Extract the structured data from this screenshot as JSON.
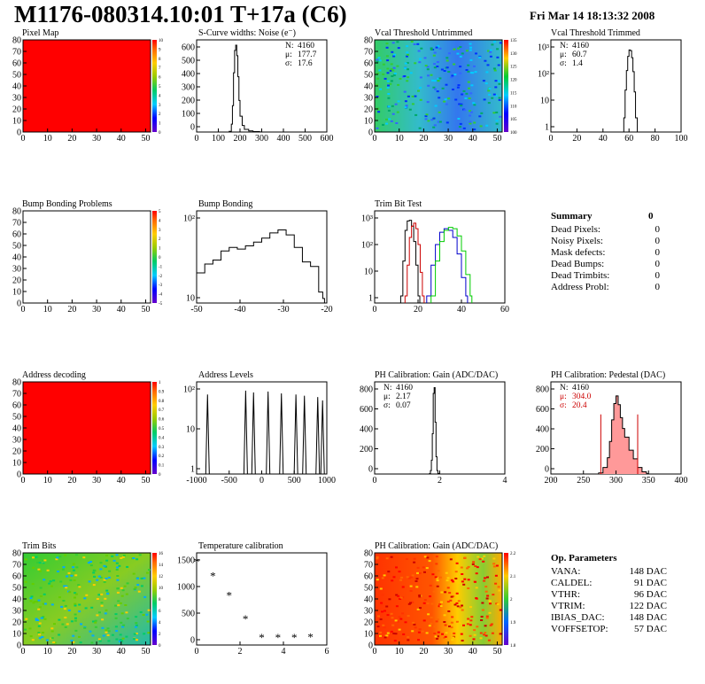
{
  "header": {
    "title": "M1176-080314.10:01 T+17a (C6)",
    "date": "Fri Mar 14 18:13:32 2008"
  },
  "colors": {
    "frame": "#000000",
    "red_map": "#ff0000",
    "trim_blue": "#0000cc",
    "trim_green": "#00cc00",
    "trim_red": "#cc0000",
    "pedestal_fill": "#ff9999",
    "pedestal_marker": "#cc0000",
    "stat_highlight": "#cc0000"
  },
  "panels": {
    "pixel_map": {
      "title": "Pixel Map",
      "x_ticks": [
        "0",
        "10",
        "20",
        "30",
        "40",
        "50"
      ],
      "y_ticks": [
        "0",
        "10",
        "20",
        "30",
        "40",
        "50",
        "60",
        "70",
        "80"
      ],
      "palette_ticks": [
        "0",
        "1",
        "2",
        "3",
        "4",
        "5",
        "6",
        "7",
        "8",
        "9",
        "10"
      ]
    },
    "scurve": {
      "title": "S-Curve widths: Noise (e⁻)",
      "x_ticks": [
        "0",
        "100",
        "200",
        "300",
        "400",
        "500",
        "600"
      ],
      "y_ticks": [
        "0",
        "100",
        "200",
        "300",
        "400",
        "500",
        "600"
      ],
      "stats": [
        {
          "label": "N:",
          "value": "4160"
        },
        {
          "label": "μ:",
          "value": "177.7"
        },
        {
          "label": "σ:",
          "value": "17.6"
        }
      ]
    },
    "vcal_untrimmed": {
      "title": "Vcal Threshold Untrimmed",
      "x_ticks": [
        "0",
        "10",
        "20",
        "30",
        "40",
        "50"
      ],
      "y_ticks": [
        "0",
        "10",
        "20",
        "30",
        "40",
        "50",
        "60",
        "70",
        "80"
      ],
      "palette_ticks": [
        "100",
        "105",
        "110",
        "115",
        "120",
        "125",
        "130",
        "135"
      ]
    },
    "vcal_trimmed": {
      "title": "Vcal Threshold Trimmed",
      "x_ticks": [
        "0",
        "20",
        "40",
        "60",
        "80",
        "100"
      ],
      "y_ticks": [
        "1",
        "10",
        "10²",
        "10³"
      ],
      "stats": [
        {
          "label": "N:",
          "value": "4160"
        },
        {
          "label": "μ:",
          "value": "60.7"
        },
        {
          "label": "σ:",
          "value": "1.4"
        }
      ]
    },
    "bump_problems": {
      "title": "Bump Bonding Problems",
      "x_ticks": [
        "0",
        "10",
        "20",
        "30",
        "40",
        "50"
      ],
      "y_ticks": [
        "0",
        "10",
        "20",
        "30",
        "40",
        "50",
        "60",
        "70",
        "80"
      ],
      "palette_ticks": [
        "-5",
        "-4",
        "-3",
        "-2",
        "-1",
        "0",
        "1",
        "2",
        "3",
        "4",
        "5"
      ]
    },
    "bump_bonding": {
      "title": "Bump Bonding",
      "x_ticks": [
        "-50",
        "-40",
        "-30",
        "-20"
      ],
      "y_ticks": [
        "10",
        "10²"
      ]
    },
    "trim_bit_test": {
      "title": "Trim Bit Test",
      "x_ticks": [
        "0",
        "20",
        "40",
        "60"
      ],
      "y_ticks": [
        "1",
        "10",
        "10²",
        "10³"
      ]
    },
    "summary": {
      "title": "Summary",
      "total": "0",
      "rows": [
        {
          "label": "Dead Pixels:",
          "value": "0"
        },
        {
          "label": "Noisy Pixels:",
          "value": "0"
        },
        {
          "label": "Mask defects:",
          "value": "0"
        },
        {
          "label": "Dead Bumps:",
          "value": "0"
        },
        {
          "label": "Dead Trimbits:",
          "value": "0"
        },
        {
          "label": "Address Probl:",
          "value": "0"
        }
      ]
    },
    "address_decoding": {
      "title": "Address decoding",
      "x_ticks": [
        "0",
        "10",
        "20",
        "30",
        "40",
        "50"
      ],
      "y_ticks": [
        "0",
        "10",
        "20",
        "30",
        "40",
        "50",
        "60",
        "70",
        "80"
      ],
      "palette_ticks": [
        "0",
        "0.1",
        "0.2",
        "0.3",
        "0.4",
        "0.5",
        "0.6",
        "0.7",
        "0.8",
        "0.9",
        "1"
      ]
    },
    "address_levels": {
      "title": "Address Levels",
      "x_ticks": [
        "-1000",
        "-500",
        "0",
        "500",
        "1000"
      ],
      "y_ticks": [
        "1",
        "10",
        "10²"
      ]
    },
    "ph_gain": {
      "title": "PH Calibration: Gain (ADC/DAC)",
      "x_ticks": [
        "0",
        "2",
        "4"
      ],
      "y_ticks": [
        "0",
        "200",
        "400",
        "600",
        "800"
      ],
      "stats": [
        {
          "label": "N:",
          "value": "4160"
        },
        {
          "label": "μ:",
          "value": "2.17"
        },
        {
          "label": "σ:",
          "value": "0.07"
        }
      ]
    },
    "ph_pedestal": {
      "title": "PH Calibration: Pedestal (DAC)",
      "x_ticks": [
        "200",
        "250",
        "300",
        "350",
        "400"
      ],
      "y_ticks": [
        "0",
        "200",
        "400",
        "600",
        "800"
      ],
      "stats": [
        {
          "label": "N:",
          "value": "4160"
        },
        {
          "label": "μ:",
          "value": "304.0"
        },
        {
          "label": "σ:",
          "value": "20.4"
        }
      ]
    },
    "trim_bits": {
      "title": "Trim Bits",
      "x_ticks": [
        "0",
        "10",
        "20",
        "30",
        "40",
        "50"
      ],
      "y_ticks": [
        "0",
        "10",
        "20",
        "30",
        "40",
        "50",
        "60",
        "70",
        "80"
      ],
      "palette_ticks": [
        "0",
        "2",
        "4",
        "6",
        "8",
        "10",
        "12",
        "14",
        "16"
      ]
    },
    "temperature": {
      "title": "Temperature calibration",
      "x_ticks": [
        "0",
        "2",
        "4",
        "6"
      ],
      "y_ticks": [
        "0",
        "500",
        "1000",
        "1500"
      ]
    },
    "ph_gain_map": {
      "title": "PH Calibration: Gain (ADC/DAC)",
      "x_ticks": [
        "0",
        "10",
        "20",
        "30",
        "40",
        "50"
      ],
      "y_ticks": [
        "0",
        "10",
        "20",
        "30",
        "40",
        "50",
        "60",
        "70",
        "80"
      ],
      "palette_ticks": [
        "1.8",
        "1.9",
        "2",
        "2.1",
        "2.2"
      ]
    },
    "op_params": {
      "title": "Op. Parameters",
      "rows": [
        {
          "label": "VANA:",
          "value": "148 DAC"
        },
        {
          "label": "CALDEL:",
          "value": "91 DAC"
        },
        {
          "label": "VTHR:",
          "value": "96 DAC"
        },
        {
          "label": "VTRIM:",
          "value": "122 DAC"
        },
        {
          "label": "IBIAS_DAC:",
          "value": "148 DAC"
        },
        {
          "label": "VOFFSETOP:",
          "value": "57 DAC"
        }
      ]
    }
  },
  "chart_data": [
    {
      "id": "scurve",
      "type": "bar",
      "x": [
        150,
        160,
        165,
        170,
        175,
        180,
        185,
        190,
        195,
        200,
        210,
        220,
        240,
        260,
        290
      ],
      "values": [
        5,
        60,
        200,
        450,
        620,
        660,
        580,
        420,
        240,
        120,
        50,
        20,
        8,
        3,
        1
      ],
      "xlim": [
        0,
        600
      ],
      "ylim": [
        0,
        700
      ]
    },
    {
      "id": "vcal_trimmed",
      "type": "bar",
      "x": [
        56,
        57,
        58,
        59,
        60,
        61,
        62,
        63,
        64,
        65
      ],
      "values": [
        2,
        30,
        200,
        800,
        1500,
        1400,
        700,
        180,
        25,
        2
      ],
      "xlim": [
        0,
        100
      ],
      "ylim": [
        0.5,
        4000
      ],
      "yscale": "log"
    },
    {
      "id": "bump_bonding",
      "type": "bar",
      "x": [
        -50,
        -48,
        -46,
        -44,
        -42,
        -40,
        -38,
        -36,
        -34,
        -32,
        -30,
        -28,
        -26,
        -24,
        -22,
        -20,
        -19
      ],
      "values": [
        20,
        35,
        45,
        80,
        100,
        90,
        110,
        140,
        180,
        250,
        300,
        220,
        100,
        40,
        30,
        6,
        4
      ],
      "xlim": [
        -50,
        -18
      ],
      "ylim": [
        3,
        1000
      ],
      "yscale": "log"
    },
    {
      "id": "trim_bit_test",
      "type": "line",
      "series": [
        {
          "color": "#000000",
          "x": [
            12,
            13,
            14,
            15,
            16,
            17,
            18,
            19,
            20
          ],
          "values": [
            1,
            30,
            600,
            1500,
            1600,
            900,
            200,
            20,
            1
          ]
        },
        {
          "color": "#cc0000",
          "x": [
            14,
            15,
            16,
            17,
            18,
            19,
            20,
            21,
            22
          ],
          "values": [
            1,
            20,
            300,
            900,
            1200,
            700,
            150,
            10,
            1
          ]
        },
        {
          "color": "#0000cc",
          "x": [
            24,
            26,
            28,
            30,
            32,
            34,
            36,
            38,
            40,
            42
          ],
          "values": [
            1,
            20,
            150,
            500,
            700,
            600,
            300,
            60,
            6,
            1
          ]
        },
        {
          "color": "#00cc00",
          "x": [
            26,
            28,
            30,
            32,
            34,
            36,
            38,
            40,
            42,
            44
          ],
          "values": [
            1,
            30,
            200,
            600,
            800,
            700,
            350,
            80,
            8,
            1
          ]
        }
      ],
      "xlim": [
        0,
        60
      ],
      "ylim": [
        0.5,
        4000
      ],
      "yscale": "log"
    },
    {
      "id": "address_levels",
      "type": "bar",
      "x": [
        -920,
        -290,
        -160,
        80,
        300,
        540,
        680,
        900,
        980
      ],
      "values": [
        500,
        700,
        600,
        650,
        550,
        500,
        450,
        400,
        300
      ],
      "xlim": [
        -1100,
        1050
      ],
      "ylim": [
        0.5,
        1500
      ],
      "yscale": "log"
    },
    {
      "id": "ph_gain",
      "type": "bar",
      "x": [
        1.95,
        2.0,
        2.05,
        2.1,
        2.15,
        2.2,
        2.25,
        2.3,
        2.35,
        2.4
      ],
      "values": [
        5,
        30,
        120,
        350,
        700,
        750,
        450,
        150,
        30,
        5
      ],
      "xlim": [
        -1,
        6
      ],
      "ylim": [
        0,
        800
      ]
    },
    {
      "id": "ph_pedestal",
      "type": "bar",
      "x": [
        260,
        270,
        280,
        285,
        290,
        295,
        300,
        305,
        310,
        315,
        320,
        330,
        340,
        350,
        360,
        370
      ],
      "values": [
        10,
        60,
        150,
        300,
        500,
        650,
        720,
        640,
        520,
        420,
        340,
        220,
        140,
        60,
        20,
        5
      ],
      "xlim": [
        150,
        450
      ],
      "ylim": [
        0,
        850
      ]
    },
    {
      "id": "temperature",
      "type": "scatter",
      "x": [
        0,
        1,
        2,
        3,
        4,
        5,
        6,
        7
      ],
      "values": [
        1380,
        1120,
        760,
        320,
        -20,
        -20,
        -20,
        -10
      ],
      "xlim": [
        0,
        8
      ],
      "ylim": [
        -150,
        1550
      ]
    }
  ]
}
